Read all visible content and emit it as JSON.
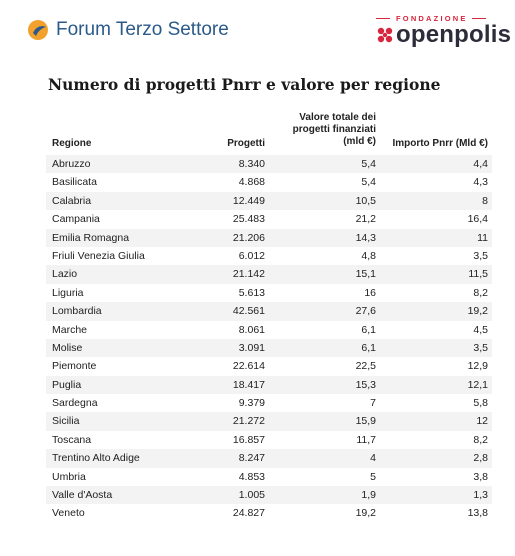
{
  "header": {
    "left_brand": "Forum Terzo Settore",
    "right_brand_top": "FONDAZIONE",
    "right_brand": "openpolis",
    "colors": {
      "fts_blue": "#2b5a8a",
      "fts_orange": "#f2a22c",
      "openpolis_red": "#d7263d"
    }
  },
  "title": "Numero di progetti Pnrr e valore per regione",
  "table": {
    "columns": {
      "regione": "Regione",
      "progetti": "Progetti",
      "valore_line1": "Valore totale dei",
      "valore_line2": "progetti finanziati",
      "valore_line3": "(mld €)",
      "importo": "Importo Pnrr (Mld €)"
    },
    "rows": [
      {
        "regione": "Abruzzo",
        "progetti": "8.340",
        "valore": "5,4",
        "importo": "4,4"
      },
      {
        "regione": "Basilicata",
        "progetti": "4.868",
        "valore": "5,4",
        "importo": "4,3"
      },
      {
        "regione": "Calabria",
        "progetti": "12.449",
        "valore": "10,5",
        "importo": "8"
      },
      {
        "regione": "Campania",
        "progetti": "25.483",
        "valore": "21,2",
        "importo": "16,4"
      },
      {
        "regione": "Emilia Romagna",
        "progetti": "21.206",
        "valore": "14,3",
        "importo": "11"
      },
      {
        "regione": "Friuli Venezia Giulia",
        "progetti": "6.012",
        "valore": "4,8",
        "importo": "3,5"
      },
      {
        "regione": "Lazio",
        "progetti": "21.142",
        "valore": "15,1",
        "importo": "11,5"
      },
      {
        "regione": "Liguria",
        "progetti": "5.613",
        "valore": "16",
        "importo": "8,2"
      },
      {
        "regione": "Lombardia",
        "progetti": "42.561",
        "valore": "27,6",
        "importo": "19,2"
      },
      {
        "regione": "Marche",
        "progetti": "8.061",
        "valore": "6,1",
        "importo": "4,5"
      },
      {
        "regione": "Molise",
        "progetti": "3.091",
        "valore": "6,1",
        "importo": "3,5"
      },
      {
        "regione": "Piemonte",
        "progetti": "22.614",
        "valore": "22,5",
        "importo": "12,9"
      },
      {
        "regione": "Puglia",
        "progetti": "18.417",
        "valore": "15,3",
        "importo": "12,1"
      },
      {
        "regione": "Sardegna",
        "progetti": "9.379",
        "valore": "7",
        "importo": "5,8"
      },
      {
        "regione": "Sicilia",
        "progetti": "21.272",
        "valore": "15,9",
        "importo": "12"
      },
      {
        "regione": "Toscana",
        "progetti": "16.857",
        "valore": "11,7",
        "importo": "8,2"
      },
      {
        "regione": "Trentino Alto Adige",
        "progetti": "8.247",
        "valore": "4",
        "importo": "2,8"
      },
      {
        "regione": "Umbria",
        "progetti": "4.853",
        "valore": "5",
        "importo": "3,8"
      },
      {
        "regione": "Valle d'Aosta",
        "progetti": "1.005",
        "valore": "1,9",
        "importo": "1,3"
      },
      {
        "regione": "Veneto",
        "progetti": "24.827",
        "valore": "19,2",
        "importo": "13,8"
      }
    ]
  }
}
